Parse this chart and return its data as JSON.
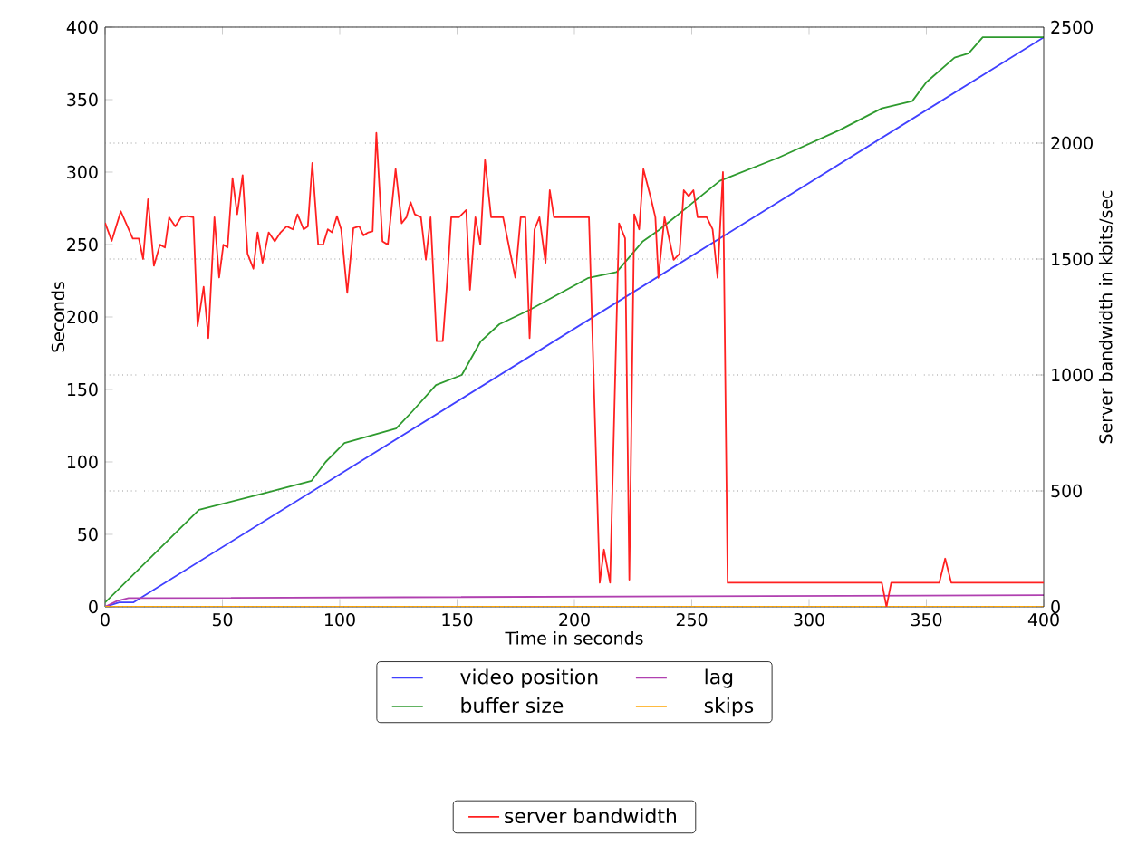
{
  "chart_data": {
    "type": "line",
    "xlabel": "Time in seconds",
    "ylabel": "Seconds",
    "y2label": "Server bandwidth in kbits/sec",
    "xlim": [
      0,
      400
    ],
    "xticks": [
      0,
      50,
      100,
      150,
      200,
      250,
      300,
      350,
      400
    ],
    "ylim": [
      0,
      400
    ],
    "yticks": [
      0,
      50,
      100,
      150,
      200,
      250,
      300,
      350,
      400
    ],
    "y2lim": [
      0,
      2500
    ],
    "y2ticks": [
      0,
      500,
      1000,
      1500,
      2000,
      2500
    ],
    "grid": "y2",
    "legend": "bottom",
    "line_style": "solid",
    "marker": "none",
    "series": [
      {
        "name": "video position",
        "color": "#4040ff",
        "x": [
          0,
          6,
          12,
          400
        ],
        "values": [
          0,
          3,
          3,
          393
        ]
      },
      {
        "name": "buffer size",
        "color": "#2e9a2e",
        "x": [
          0,
          40,
          67,
          88,
          94,
          102,
          124,
          131,
          141,
          152,
          160,
          168,
          181,
          206,
          218,
          229,
          236,
          262,
          287,
          313,
          331,
          344,
          350,
          362,
          368,
          374,
          400
        ],
        "values": [
          3,
          67,
          78,
          87,
          100,
          113,
          123,
          135,
          153,
          160,
          183,
          195,
          205,
          227,
          231,
          252,
          260,
          294,
          310,
          329,
          344,
          349,
          362,
          379,
          382,
          393,
          393
        ]
      },
      {
        "name": "lag",
        "color": "#b040b0",
        "x": [
          0,
          5,
          10,
          400
        ],
        "values": [
          0,
          4,
          6,
          8
        ]
      },
      {
        "name": "skips",
        "color": "#ffa500",
        "x": [
          0,
          400
        ],
        "values": [
          0,
          0
        ]
      },
      {
        "name": "server bandwidth",
        "color": "#ff2020",
        "axis": "y2",
        "x": [
          0,
          2.8,
          6.7,
          11.8,
          14.4,
          16.2,
          18.3,
          20.8,
          23.4,
          25.5,
          27.3,
          29.9,
          32.4,
          35,
          37.6,
          39.4,
          42,
          44,
          46.6,
          48.6,
          50.4,
          52.2,
          54.3,
          56.3,
          58.6,
          60.7,
          63.2,
          65,
          67.1,
          69.7,
          72.3,
          74.8,
          77.4,
          80,
          82,
          84.6,
          86.4,
          88.3,
          90.8,
          92.9,
          94.9,
          96.7,
          98.8,
          100.6,
          103.2,
          105.8,
          108.3,
          110.1,
          112.2,
          114,
          115.6,
          118.2,
          120.5,
          123.8,
          126.4,
          128.4,
          130.2,
          132,
          134.6,
          136.7,
          138.7,
          141.3,
          143.9,
          145.7,
          147.5,
          150.8,
          153.9,
          155.5,
          157.8,
          159.9,
          161.9,
          164.5,
          169.6,
          174.8,
          177.1,
          179.1,
          180.9,
          183,
          185.1,
          187.7,
          189.5,
          191.3,
          206.2,
          210.8,
          212.6,
          215.2,
          219,
          221.6,
          223.4,
          225.5,
          227.6,
          229.4,
          232.7,
          234.5,
          235.8,
          238.4,
          242.3,
          244.8,
          246.6,
          248.7,
          250.7,
          252.5,
          256.4,
          258.9,
          261,
          263.3,
          265.3,
          331,
          333,
          335,
          355.5,
          358,
          360.6,
          400
        ],
        "values": [
          1656,
          1578,
          1706,
          1588,
          1588,
          1500,
          1758,
          1471,
          1562,
          1550,
          1680,
          1641,
          1680,
          1685,
          1680,
          1211,
          1380,
          1159,
          1680,
          1420,
          1562,
          1550,
          1849,
          1693,
          1862,
          1523,
          1458,
          1615,
          1484,
          1615,
          1576,
          1615,
          1641,
          1628,
          1693,
          1628,
          1641,
          1914,
          1562,
          1562,
          1628,
          1615,
          1685,
          1628,
          1354,
          1633,
          1641,
          1602,
          1615,
          1620,
          2044,
          1576,
          1562,
          1888,
          1654,
          1680,
          1745,
          1693,
          1680,
          1497,
          1680,
          1146,
          1146,
          1393,
          1680,
          1680,
          1711,
          1367,
          1680,
          1562,
          1927,
          1680,
          1680,
          1420,
          1680,
          1680,
          1159,
          1628,
          1680,
          1484,
          1797,
          1680,
          1680,
          104,
          247,
          104,
          1654,
          1589,
          117,
          1693,
          1628,
          1888,
          1758,
          1680,
          1419,
          1680,
          1497,
          1523,
          1797,
          1771,
          1797,
          1680,
          1680,
          1628,
          1419,
          1875,
          104,
          104,
          0,
          104,
          104,
          208,
          104,
          104
        ]
      }
    ]
  }
}
